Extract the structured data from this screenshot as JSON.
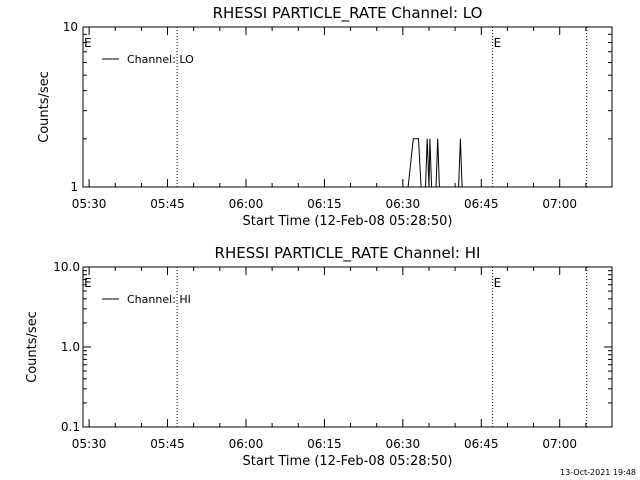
{
  "chart_data": [
    {
      "type": "line",
      "title": "RHESSI PARTICLE_RATE Channel: LO",
      "xlabel": "Start Time (12-Feb-08 05:28:50)",
      "ylabel": "Counts/sec",
      "y_scale": "log",
      "ylim": [
        1,
        10
      ],
      "y_ticks": [
        1,
        10
      ],
      "y_tick_labels": [
        "1",
        "10"
      ],
      "xlim": [
        "05:28:50",
        "07:10:00"
      ],
      "x_ticks": [
        "05:30",
        "05:45",
        "06:00",
        "06:15",
        "06:30",
        "06:45",
        "07:00"
      ],
      "legend": {
        "position": "top-left",
        "entries": [
          "Channel: LO"
        ]
      },
      "vertical_markers": [
        {
          "time": "05:46:50",
          "label": ""
        },
        {
          "time": "06:47:10",
          "label": "E"
        },
        {
          "time": "07:05:10",
          "label": ""
        }
      ],
      "edge_marks": [
        {
          "time": "05:28:50",
          "label": "E"
        }
      ],
      "series": [
        {
          "name": "Channel: LO",
          "points": [
            [
              "06:31:00",
              1
            ],
            [
              "06:32:00",
              2
            ],
            [
              "06:33:00",
              2
            ],
            [
              "06:33:30",
              1
            ],
            [
              "06:34:20",
              1
            ],
            [
              "06:34:40",
              2
            ],
            [
              "06:35:00",
              1
            ],
            [
              "06:35:10",
              2
            ],
            [
              "06:35:30",
              1
            ],
            [
              "06:36:20",
              1
            ],
            [
              "06:36:40",
              2
            ],
            [
              "06:37:00",
              1
            ],
            [
              "06:40:40",
              1
            ],
            [
              "06:41:00",
              2
            ],
            [
              "06:41:20",
              1
            ]
          ]
        }
      ]
    },
    {
      "type": "line",
      "title": "RHESSI PARTICLE_RATE Channel: HI",
      "xlabel": "Start Time (12-Feb-08 05:28:50)",
      "ylabel": "Counts/sec",
      "y_scale": "log",
      "ylim": [
        0.1,
        10
      ],
      "y_ticks": [
        0.1,
        1,
        10
      ],
      "y_tick_labels": [
        "0.1",
        "1.0",
        "10.0"
      ],
      "xlim": [
        "05:28:50",
        "07:10:00"
      ],
      "x_ticks": [
        "05:30",
        "05:45",
        "06:00",
        "06:15",
        "06:30",
        "06:45",
        "07:00"
      ],
      "legend": {
        "position": "top-left",
        "entries": [
          "Channel: HI"
        ]
      },
      "vertical_markers": [
        {
          "time": "05:46:50",
          "label": ""
        },
        {
          "time": "06:47:10",
          "label": "E"
        },
        {
          "time": "07:05:10",
          "label": ""
        }
      ],
      "edge_marks": [
        {
          "time": "05:28:50",
          "label": "E"
        }
      ],
      "series": [
        {
          "name": "Channel: HI",
          "points": []
        }
      ]
    }
  ],
  "footer": {
    "timestamp": "13-Oct-2021 19:48"
  }
}
